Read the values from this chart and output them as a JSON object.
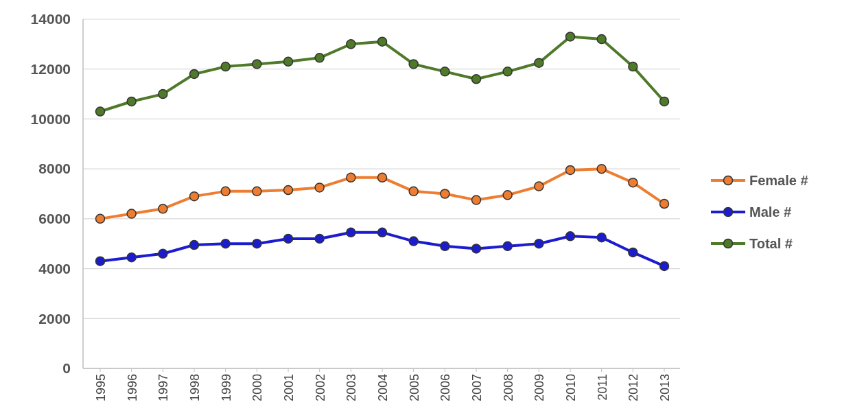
{
  "chart_data": {
    "type": "line",
    "categories": [
      "1995",
      "1996",
      "1997",
      "1998",
      "1999",
      "2000",
      "2001",
      "2002",
      "2003",
      "2004",
      "2005",
      "2006",
      "2007",
      "2008",
      "2009",
      "2010",
      "2011",
      "2012",
      "2013"
    ],
    "series": [
      {
        "name": "Female #",
        "color": "#ed7d31",
        "values": [
          6000,
          6200,
          6400,
          6900,
          7100,
          7100,
          7150,
          7250,
          7650,
          7650,
          7100,
          7000,
          6750,
          6950,
          7300,
          7950,
          8000,
          7450,
          6600
        ]
      },
      {
        "name": "Male #",
        "color": "#1c1ccf",
        "values": [
          4300,
          4450,
          4600,
          4950,
          5000,
          5000,
          5200,
          5200,
          5450,
          5450,
          5100,
          4900,
          4800,
          4900,
          5000,
          5300,
          5250,
          4650,
          4100
        ]
      },
      {
        "name": "Total #",
        "color": "#4e7a2a",
        "values": [
          10300,
          10700,
          11000,
          11800,
          12100,
          12200,
          12300,
          12450,
          13000,
          13100,
          12200,
          11900,
          11600,
          11900,
          12250,
          13300,
          13200,
          12100,
          10700
        ]
      }
    ],
    "ylim": [
      0,
      14000
    ],
    "yticks": [
      0,
      2000,
      4000,
      6000,
      8000,
      10000,
      12000,
      14000
    ],
    "grid": "y",
    "legend": "right",
    "marker": "circle",
    "line_style": "solid"
  }
}
